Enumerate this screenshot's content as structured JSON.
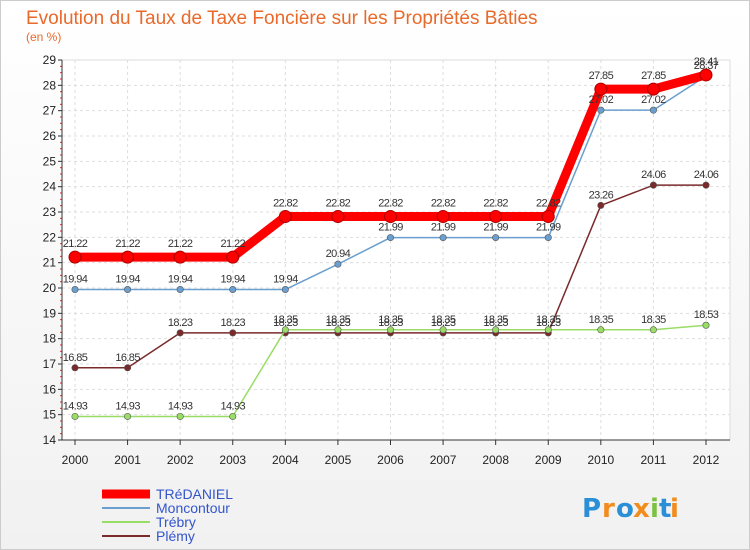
{
  "chart_data": {
    "type": "line",
    "title": "Evolution du Taux de Taxe Foncière sur les Propriétés Bâties",
    "subtitle": "(en %)",
    "xlabel": "",
    "ylabel": "",
    "ylim": [
      14,
      29
    ],
    "yticks": [
      "14",
      "15",
      "16",
      "17",
      "18",
      "19",
      "20",
      "21",
      "22",
      "23",
      "24",
      "25",
      "26",
      "27",
      "28",
      "29"
    ],
    "categories": [
      "2000",
      "2001",
      "2002",
      "2003",
      "2004",
      "2005",
      "2006",
      "2007",
      "2008",
      "2009",
      "2010",
      "2011",
      "2012"
    ],
    "grid": true,
    "legend_position": "bottom-left",
    "series": [
      {
        "name": "TRéDANIEL",
        "color": "#ff0000",
        "values": [
          21.22,
          21.22,
          21.22,
          21.22,
          22.82,
          22.82,
          22.82,
          22.82,
          22.82,
          22.82,
          27.85,
          27.85,
          28.41
        ],
        "labels": [
          "21.22",
          "21.22",
          "21.22",
          "21.22",
          "22.82",
          "22.82",
          "22.82",
          "22.82",
          "22.82",
          "22.82",
          "27.85",
          "27.85",
          "28.41"
        ]
      },
      {
        "name": "Moncontour",
        "color": "#6a9fcf",
        "values": [
          19.94,
          19.94,
          19.94,
          19.94,
          19.94,
          20.94,
          21.99,
          21.99,
          21.99,
          21.99,
          27.02,
          27.02,
          28.37
        ],
        "labels": [
          "19.94",
          "19.94",
          "19.94",
          "19.94",
          "19.94",
          "20.94",
          "21.99",
          "21.99",
          "21.99",
          "21.99",
          "27.02",
          "27.02",
          "28.37"
        ]
      },
      {
        "name": "Trébry",
        "color": "#99dd66",
        "values": [
          14.93,
          14.93,
          14.93,
          14.93,
          18.35,
          18.35,
          18.35,
          18.35,
          18.35,
          18.35,
          18.35,
          18.35,
          18.53
        ],
        "labels": [
          "14.93",
          "14.93",
          "14.93",
          "14.93",
          "18.35",
          "18.35",
          "18.35",
          "18.35",
          "18.35",
          "18.35",
          "18.35",
          "18.35",
          "18.53"
        ]
      },
      {
        "name": "Plémy",
        "color": "#7a2a2a",
        "values": [
          16.85,
          16.85,
          18.23,
          18.23,
          18.23,
          18.23,
          18.23,
          18.23,
          18.23,
          18.23,
          23.26,
          24.06,
          24.06
        ],
        "labels": [
          "16.85",
          "16.85",
          "18.23",
          "18.23",
          "18.23",
          "18.23",
          "18.23",
          "18.23",
          "18.23",
          "18.23",
          "23.26",
          "24.06",
          "24.06"
        ]
      }
    ]
  },
  "logo": {
    "letters": [
      "P",
      "r",
      "o",
      "x",
      "i",
      "t",
      "i"
    ],
    "colors": [
      "#2a8fd6",
      "#f28c1e",
      "#2a8fd6",
      "#f28c1e",
      "#7cc242",
      "#2a8fd6",
      "#f28c1e"
    ]
  }
}
